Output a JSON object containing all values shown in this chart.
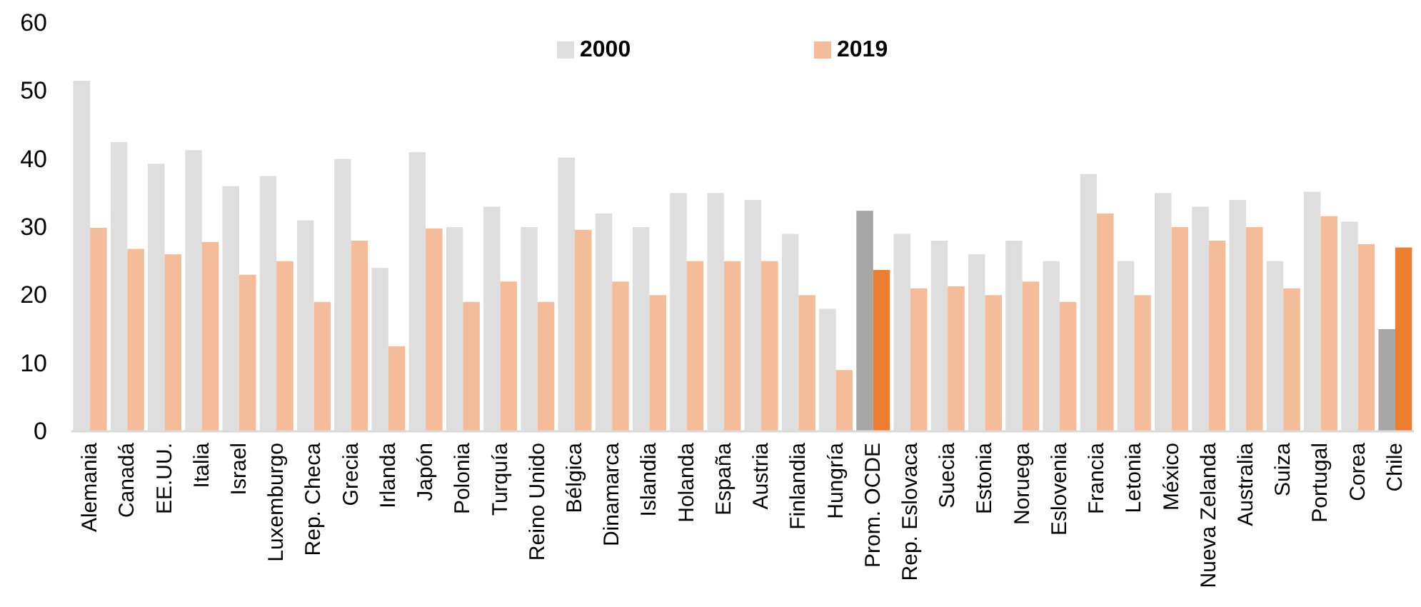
{
  "chart_data": {
    "type": "bar",
    "categories": [
      "Alemania",
      "Canadá",
      "EE.UU.",
      "Italia",
      "Israel",
      "Luxemburgo",
      "Rep. Checa",
      "Grecia",
      "Irlanda",
      "Japón",
      "Polonia",
      "Turquía",
      "Reino Unido",
      "Bélgica",
      "Dinamarca",
      "Islandia",
      "Holanda",
      "España",
      "Austria",
      "Finlandia",
      "Hungría",
      "Prom. OCDE",
      "Rep. Eslovaca",
      "Suecia",
      "Estonia",
      "Noruega",
      "Eslovenia",
      "Francia",
      "Letonia",
      "México",
      "Nueva Zelanda",
      "Australia",
      "Suiza",
      "Portugal",
      "Corea",
      "Chile"
    ],
    "series": [
      {
        "name": "2000",
        "color": "#dedede",
        "colors": [
          "#dedede",
          "#dedede",
          "#dedede",
          "#dedede",
          "#dedede",
          "#dedede",
          "#dedede",
          "#dedede",
          "#dedede",
          "#dedede",
          "#dedede",
          "#dedede",
          "#dedede",
          "#dedede",
          "#dedede",
          "#dedede",
          "#dedede",
          "#dedede",
          "#dedede",
          "#dedede",
          "#dedede",
          "#a6a6a6",
          "#dedede",
          "#dedede",
          "#dedede",
          "#dedede",
          "#dedede",
          "#dedede",
          "#dedede",
          "#dedede",
          "#dedede",
          "#dedede",
          "#dedede",
          "#dedede",
          "#dedede",
          "#a6a6a6"
        ],
        "values": [
          51.5,
          42.5,
          39.3,
          41.3,
          36,
          37.5,
          31,
          40,
          24,
          41,
          30,
          33,
          30,
          40.2,
          32,
          30,
          35,
          35,
          34,
          29,
          18,
          32.4,
          29,
          28,
          26,
          28,
          25,
          37.8,
          25,
          35,
          33,
          34,
          25,
          35.2,
          30.8,
          15
        ]
      },
      {
        "name": "2019",
        "color": "#f4bc98",
        "colors": [
          "#f4bc98",
          "#f4bc98",
          "#f4bc98",
          "#f4bc98",
          "#f4bc98",
          "#f4bc98",
          "#f4bc98",
          "#f4bc98",
          "#f4bc98",
          "#f4bc98",
          "#f4bc98",
          "#f4bc98",
          "#f4bc98",
          "#f4bc98",
          "#f4bc98",
          "#f4bc98",
          "#f4bc98",
          "#f4bc98",
          "#f4bc98",
          "#f4bc98",
          "#f4bc98",
          "#ed7d31",
          "#f4bc98",
          "#f4bc98",
          "#f4bc98",
          "#f4bc98",
          "#f4bc98",
          "#f4bc98",
          "#f4bc98",
          "#f4bc98",
          "#f4bc98",
          "#f4bc98",
          "#f4bc98",
          "#f4bc98",
          "#f4bc98",
          "#ed7d31"
        ],
        "values": [
          29.9,
          26.8,
          26,
          27.8,
          23,
          25,
          19,
          28,
          12.5,
          29.8,
          19,
          22,
          19,
          29.6,
          22,
          20,
          25,
          25,
          25,
          20,
          9,
          23.7,
          21,
          21.3,
          20,
          22,
          19,
          32,
          20,
          30,
          28,
          30,
          21,
          31.6,
          27.5,
          27
        ]
      }
    ],
    "ylim": [
      0,
      60
    ],
    "yticks": [
      0,
      10,
      20,
      30,
      40,
      50,
      60
    ],
    "grid": false,
    "legend": "top"
  }
}
